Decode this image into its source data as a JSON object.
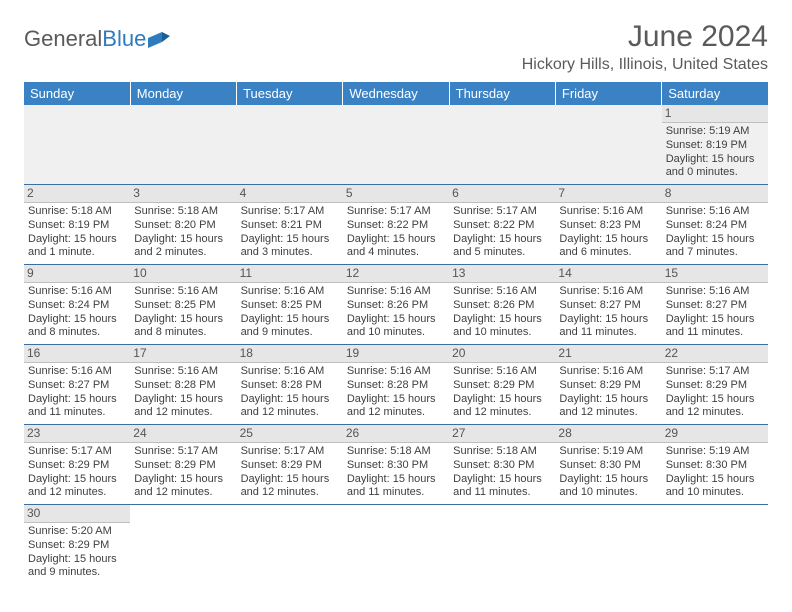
{
  "logo": {
    "text1": "General",
    "text2": "Blue"
  },
  "header": {
    "month_title": "June 2024",
    "location": "Hickory Hills, Illinois, United States"
  },
  "colors": {
    "header_bg": "#3b82c4",
    "header_text": "#ffffff",
    "rule": "#3b6fa0",
    "daynum_bg": "#e6e6e6",
    "body_text": "#3f3f3f",
    "title_text": "#5a5a5a",
    "logo_blue": "#2f7bbf"
  },
  "weekdays": [
    "Sunday",
    "Monday",
    "Tuesday",
    "Wednesday",
    "Thursday",
    "Friday",
    "Saturday"
  ],
  "days": {
    "1": {
      "sunrise": "5:19 AM",
      "sunset": "8:19 PM",
      "daylight": "15 hours and 0 minutes."
    },
    "2": {
      "sunrise": "5:18 AM",
      "sunset": "8:19 PM",
      "daylight": "15 hours and 1 minute."
    },
    "3": {
      "sunrise": "5:18 AM",
      "sunset": "8:20 PM",
      "daylight": "15 hours and 2 minutes."
    },
    "4": {
      "sunrise": "5:17 AM",
      "sunset": "8:21 PM",
      "daylight": "15 hours and 3 minutes."
    },
    "5": {
      "sunrise": "5:17 AM",
      "sunset": "8:22 PM",
      "daylight": "15 hours and 4 minutes."
    },
    "6": {
      "sunrise": "5:17 AM",
      "sunset": "8:22 PM",
      "daylight": "15 hours and 5 minutes."
    },
    "7": {
      "sunrise": "5:16 AM",
      "sunset": "8:23 PM",
      "daylight": "15 hours and 6 minutes."
    },
    "8": {
      "sunrise": "5:16 AM",
      "sunset": "8:24 PM",
      "daylight": "15 hours and 7 minutes."
    },
    "9": {
      "sunrise": "5:16 AM",
      "sunset": "8:24 PM",
      "daylight": "15 hours and 8 minutes."
    },
    "10": {
      "sunrise": "5:16 AM",
      "sunset": "8:25 PM",
      "daylight": "15 hours and 8 minutes."
    },
    "11": {
      "sunrise": "5:16 AM",
      "sunset": "8:25 PM",
      "daylight": "15 hours and 9 minutes."
    },
    "12": {
      "sunrise": "5:16 AM",
      "sunset": "8:26 PM",
      "daylight": "15 hours and 10 minutes."
    },
    "13": {
      "sunrise": "5:16 AM",
      "sunset": "8:26 PM",
      "daylight": "15 hours and 10 minutes."
    },
    "14": {
      "sunrise": "5:16 AM",
      "sunset": "8:27 PM",
      "daylight": "15 hours and 11 minutes."
    },
    "15": {
      "sunrise": "5:16 AM",
      "sunset": "8:27 PM",
      "daylight": "15 hours and 11 minutes."
    },
    "16": {
      "sunrise": "5:16 AM",
      "sunset": "8:27 PM",
      "daylight": "15 hours and 11 minutes."
    },
    "17": {
      "sunrise": "5:16 AM",
      "sunset": "8:28 PM",
      "daylight": "15 hours and 12 minutes."
    },
    "18": {
      "sunrise": "5:16 AM",
      "sunset": "8:28 PM",
      "daylight": "15 hours and 12 minutes."
    },
    "19": {
      "sunrise": "5:16 AM",
      "sunset": "8:28 PM",
      "daylight": "15 hours and 12 minutes."
    },
    "20": {
      "sunrise": "5:16 AM",
      "sunset": "8:29 PM",
      "daylight": "15 hours and 12 minutes."
    },
    "21": {
      "sunrise": "5:16 AM",
      "sunset": "8:29 PM",
      "daylight": "15 hours and 12 minutes."
    },
    "22": {
      "sunrise": "5:17 AM",
      "sunset": "8:29 PM",
      "daylight": "15 hours and 12 minutes."
    },
    "23": {
      "sunrise": "5:17 AM",
      "sunset": "8:29 PM",
      "daylight": "15 hours and 12 minutes."
    },
    "24": {
      "sunrise": "5:17 AM",
      "sunset": "8:29 PM",
      "daylight": "15 hours and 12 minutes."
    },
    "25": {
      "sunrise": "5:17 AM",
      "sunset": "8:29 PM",
      "daylight": "15 hours and 12 minutes."
    },
    "26": {
      "sunrise": "5:18 AM",
      "sunset": "8:30 PM",
      "daylight": "15 hours and 11 minutes."
    },
    "27": {
      "sunrise": "5:18 AM",
      "sunset": "8:30 PM",
      "daylight": "15 hours and 11 minutes."
    },
    "28": {
      "sunrise": "5:19 AM",
      "sunset": "8:30 PM",
      "daylight": "15 hours and 10 minutes."
    },
    "29": {
      "sunrise": "5:19 AM",
      "sunset": "8:30 PM",
      "daylight": "15 hours and 10 minutes."
    },
    "30": {
      "sunrise": "5:20 AM",
      "sunset": "8:29 PM",
      "daylight": "15 hours and 9 minutes."
    }
  },
  "layout": {
    "first_weekday_index": 6,
    "num_days": 30
  },
  "labels": {
    "sunrise_prefix": "Sunrise: ",
    "sunset_prefix": "Sunset: ",
    "daylight_prefix": "Daylight: "
  }
}
